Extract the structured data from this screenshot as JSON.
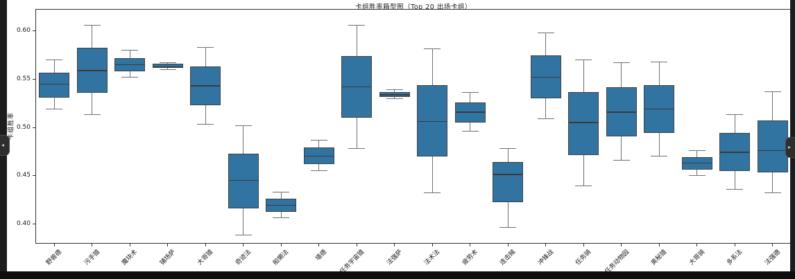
{
  "colors": {
    "box_fill": "#3274a1",
    "box_edge": "#3f3f3f",
    "median_line": "#3a3a3a",
    "whisker": "#6f6f6f",
    "chrome_dark": "#1d1d1d"
  },
  "side_controls": {
    "left_icon": "◂",
    "right_icon": "▸"
  },
  "chart_data": {
    "type": "boxplot",
    "title": "卡组胜率箱型图（Top 20 出场卡组）",
    "xlabel": "",
    "ylabel": "卡组胜率",
    "ylim": [
      0.3792,
      0.623
    ],
    "yticks": [
      0.4,
      0.45,
      0.5,
      0.55,
      0.6
    ],
    "grid": false,
    "legend": "none",
    "categories": [
      "野兽德",
      "污手猎",
      "魔块术",
      "铺场萨",
      "大哥猎",
      "奇迹法",
      "船懒法",
      "墙德",
      "任务宇宙猎",
      "法强萨",
      "法术法",
      "疲劳术",
      "连击贼",
      "冲锋战",
      "任务骑",
      "任务动物园",
      "奥秘猎",
      "大哥骑",
      "多系法",
      "法强德"
    ],
    "boxes": [
      {
        "label": "野兽德",
        "whisker_low": 0.519,
        "q1": 0.531,
        "median": 0.545,
        "q3": 0.557,
        "whisker_high": 0.57
      },
      {
        "label": "污手猎",
        "whisker_low": 0.513,
        "q1": 0.536,
        "median": 0.559,
        "q3": 0.583,
        "whisker_high": 0.606
      },
      {
        "label": "魔块术",
        "whisker_low": 0.552,
        "q1": 0.558,
        "median": 0.565,
        "q3": 0.572,
        "whisker_high": 0.58
      },
      {
        "label": "铺场萨",
        "whisker_low": 0.56,
        "q1": 0.562,
        "median": 0.563,
        "q3": 0.566,
        "whisker_high": 0.567
      },
      {
        "label": "大哥猎",
        "whisker_low": 0.503,
        "q1": 0.523,
        "median": 0.543,
        "q3": 0.563,
        "whisker_high": 0.583
      },
      {
        "label": "奇迹法",
        "whisker_low": 0.388,
        "q1": 0.416,
        "median": 0.445,
        "q3": 0.473,
        "whisker_high": 0.502
      },
      {
        "label": "船懒法",
        "whisker_low": 0.406,
        "q1": 0.412,
        "median": 0.419,
        "q3": 0.426,
        "whisker_high": 0.433
      },
      {
        "label": "墙德",
        "whisker_low": 0.455,
        "q1": 0.462,
        "median": 0.47,
        "q3": 0.479,
        "whisker_high": 0.487
      },
      {
        "label": "任务宇宙猎",
        "whisker_low": 0.478,
        "q1": 0.51,
        "median": 0.542,
        "q3": 0.574,
        "whisker_high": 0.606
      },
      {
        "label": "法强萨",
        "whisker_low": 0.53,
        "q1": 0.532,
        "median": 0.534,
        "q3": 0.537,
        "whisker_high": 0.539
      },
      {
        "label": "法术法",
        "whisker_low": 0.432,
        "q1": 0.47,
        "median": 0.506,
        "q3": 0.544,
        "whisker_high": 0.582
      },
      {
        "label": "疲劳术",
        "whisker_low": 0.496,
        "q1": 0.505,
        "median": 0.516,
        "q3": 0.526,
        "whisker_high": 0.536
      },
      {
        "label": "连击贼",
        "whisker_low": 0.396,
        "q1": 0.422,
        "median": 0.451,
        "q3": 0.464,
        "whisker_high": 0.478
      },
      {
        "label": "冲锋战",
        "whisker_low": 0.509,
        "q1": 0.53,
        "median": 0.552,
        "q3": 0.575,
        "whisker_high": 0.598
      },
      {
        "label": "任务骑",
        "whisker_low": 0.439,
        "q1": 0.471,
        "median": 0.505,
        "q3": 0.537,
        "whisker_high": 0.57
      },
      {
        "label": "任务动物园",
        "whisker_low": 0.466,
        "q1": 0.491,
        "median": 0.516,
        "q3": 0.542,
        "whisker_high": 0.567
      },
      {
        "label": "奥秘猎",
        "whisker_low": 0.47,
        "q1": 0.494,
        "median": 0.519,
        "q3": 0.544,
        "whisker_high": 0.568
      },
      {
        "label": "大哥骑",
        "whisker_low": 0.45,
        "q1": 0.456,
        "median": 0.463,
        "q3": 0.469,
        "whisker_high": 0.476
      },
      {
        "label": "多系法",
        "whisker_low": 0.436,
        "q1": 0.455,
        "median": 0.474,
        "q3": 0.494,
        "whisker_high": 0.513
      },
      {
        "label": "法强德",
        "whisker_low": 0.432,
        "q1": 0.453,
        "median": 0.476,
        "q3": 0.507,
        "whisker_high": 0.537
      }
    ]
  }
}
